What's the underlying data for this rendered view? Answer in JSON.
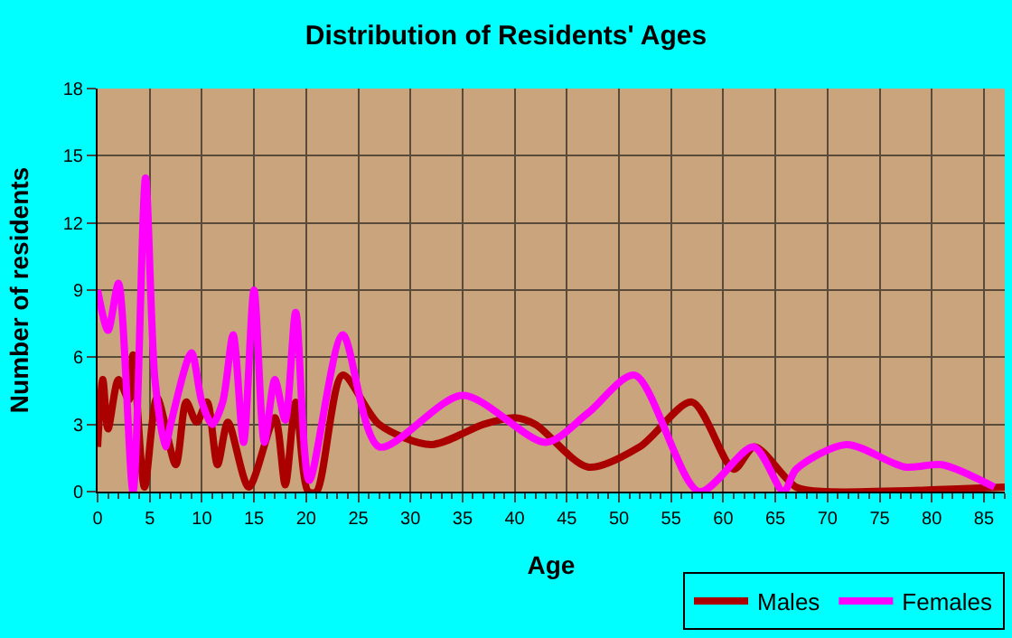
{
  "chart_data": {
    "type": "line",
    "title": "Distribution of Residents' Ages",
    "xlabel": "Age",
    "ylabel": "Number of residents",
    "xlim": [
      0,
      87
    ],
    "xticks": [
      0,
      5,
      10,
      15,
      20,
      25,
      30,
      35,
      40,
      45,
      50,
      55,
      60,
      65,
      70,
      75,
      80,
      85
    ],
    "ylim": [
      0,
      18
    ],
    "yticks": [
      0,
      3,
      6,
      9,
      12,
      15,
      18
    ],
    "grid": true,
    "legend": "bottom right",
    "marker": "none",
    "line_style": "solid",
    "series": [
      {
        "name": "Males",
        "color": "#aa0000",
        "x": [
          0,
          0.5,
          1,
          2,
          3,
          3.4,
          4.5,
          5.7,
          7.5,
          8.5,
          9.5,
          10.5,
          11.5,
          12.5,
          14.5,
          17,
          18,
          19,
          20.2,
          21,
          23.5,
          27,
          32,
          37,
          40,
          42,
          47,
          52,
          57,
          61,
          63,
          67,
          70,
          87
        ],
        "values": [
          2,
          5,
          2.8,
          5,
          4.1,
          6.1,
          0.2,
          4.2,
          1.2,
          4,
          3.1,
          4,
          1.2,
          3.1,
          0.2,
          3.3,
          0.3,
          4,
          0,
          0,
          5.2,
          3,
          2.1,
          3,
          3.3,
          3,
          1.1,
          2,
          4,
          1,
          2,
          0.2,
          0,
          0.2
        ]
      },
      {
        "name": "Females",
        "color": "#ff00ff",
        "x": [
          0,
          1,
          2,
          3.4,
          4.6,
          5.5,
          6.5,
          7,
          9,
          10,
          11,
          12,
          13,
          14,
          15,
          16,
          17,
          18,
          19,
          20.3,
          23.5,
          27,
          35,
          43,
          47,
          51.5,
          57.7,
          62.9,
          65.8,
          67,
          71.8,
          77.4,
          81,
          86
        ],
        "values": [
          9,
          7.2,
          9.3,
          0,
          14,
          5,
          2,
          3,
          6.2,
          4,
          3,
          4,
          7,
          2.2,
          9,
          2.2,
          5,
          3.2,
          8,
          0.5,
          7,
          2,
          4.3,
          2.2,
          3.5,
          5.2,
          0,
          2,
          0,
          1,
          2.1,
          1.1,
          1.2,
          0.2
        ]
      }
    ]
  }
}
